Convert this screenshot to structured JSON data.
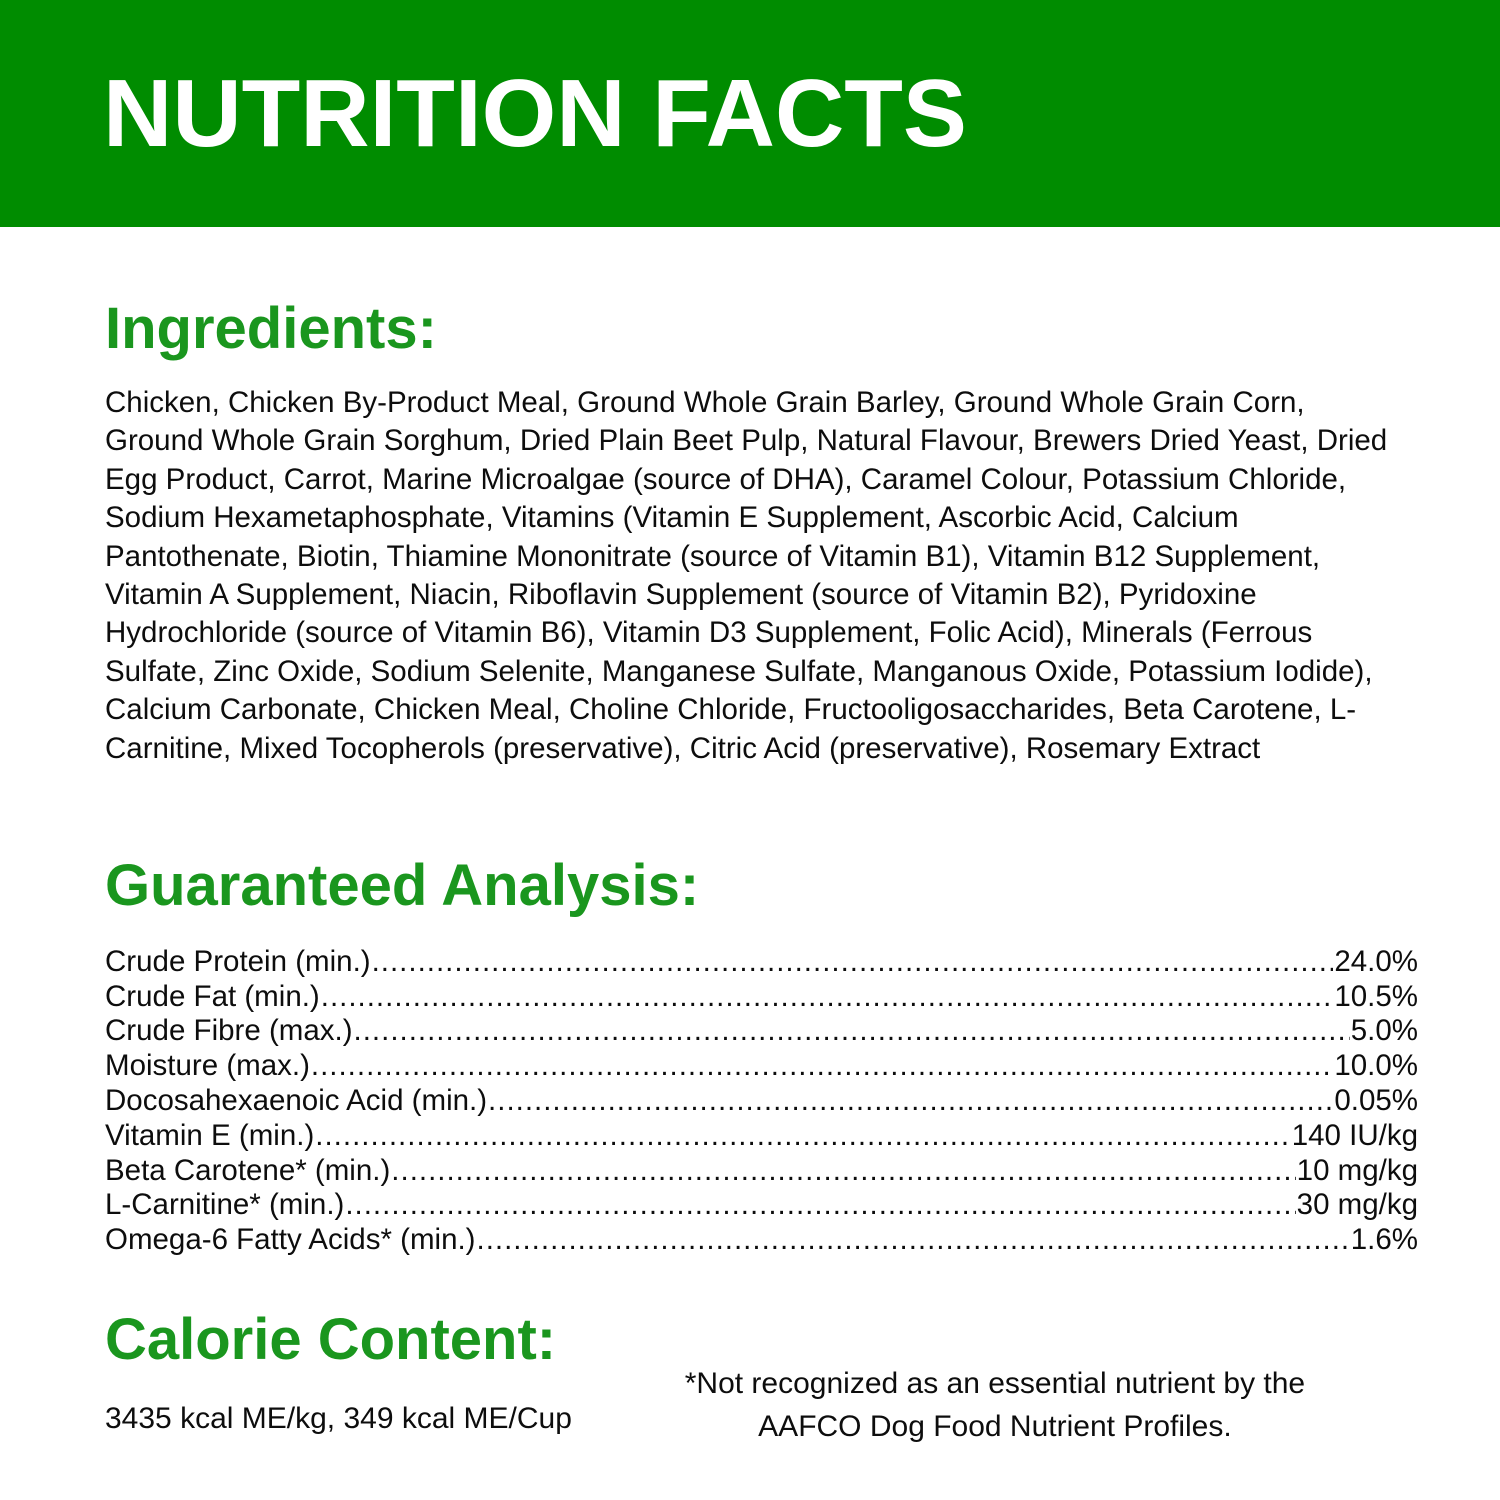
{
  "banner": {
    "title": "NUTRITION FACTS"
  },
  "ingredients": {
    "heading": "Ingredients:",
    "text": "Chicken, Chicken By-Product Meal, Ground Whole Grain Barley, Ground Whole Grain Corn, Ground Whole Grain Sorghum, Dried Plain Beet Pulp, Natural Flavour, Brewers Dried Yeast, Dried Egg Product, Carrot, Marine Microalgae (source of DHA), Caramel Colour, Potassium Chloride, Sodium Hexametaphosphate, Vitamins (Vitamin E Supplement, Ascorbic Acid, Calcium Pantothenate, Biotin, Thiamine Mononitrate (source of Vitamin B1), Vitamin B12 Supplement, Vitamin A Supplement, Niacin, Riboflavin Supplement (source of Vitamin B2), Pyridoxine Hydrochloride (source of Vitamin B6), Vitamin D3 Supplement, Folic Acid), Minerals (Ferrous Sulfate, Zinc Oxide, Sodium Selenite, Manganese Sulfate, Manganous Oxide, Potassium Iodide), Calcium Carbonate, Chicken Meal, Choline Chloride, Fructooligosaccharides, Beta Carotene, L-Carnitine, Mixed Tocopherols (preservative), Citric Acid (preservative), Rosemary Extract"
  },
  "guaranteed_analysis": {
    "heading": "Guaranteed Analysis:",
    "rows": [
      {
        "label": "Crude Protein (min.)",
        "value": "24.0%"
      },
      {
        "label": "Crude Fat (min.)",
        "value": "10.5%"
      },
      {
        "label": "Crude Fibre (max.)",
        "value": "5.0%"
      },
      {
        "label": "Moisture (max.)",
        "value": "10.0%"
      },
      {
        "label": "Docosahexaenoic Acid (min.)",
        "value": "0.05%"
      },
      {
        "label": "Vitamin E (min.)",
        "value": "140 IU/kg"
      },
      {
        "label": "Beta Carotene* (min.)",
        "value": "10 mg/kg"
      },
      {
        "label": "L-Carnitine* (min.)",
        "value": "30 mg/kg"
      },
      {
        "label": "Omega-6 Fatty Acids* (min.)",
        "value": "1.6%"
      }
    ]
  },
  "calorie_content": {
    "heading": "Calorie Content:",
    "text": "3435 kcal ME/kg, 349 kcal ME/Cup"
  },
  "footnote": {
    "text": "*Not recognized as an essential nutrient by the AAFCO Dog Food Nutrient Profiles."
  },
  "colors": {
    "banner_green": "#008c00",
    "heading_green": "#1a961e",
    "title_white": "#ffffff",
    "body_text": "#0d0d0d"
  }
}
